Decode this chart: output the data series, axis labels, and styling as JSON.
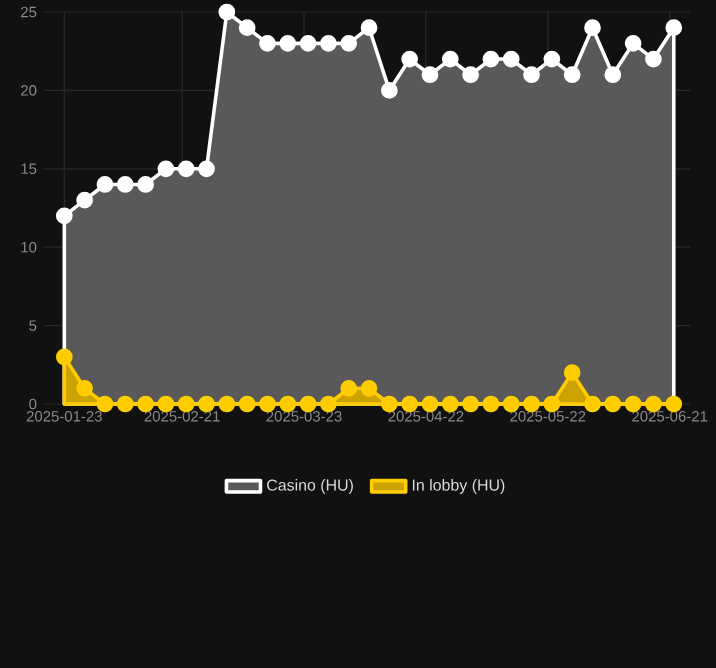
{
  "chart_data": {
    "type": "area",
    "x": [
      "2025-01-23",
      "2025-01-28",
      "2025-02-02",
      "2025-02-07",
      "2025-02-12",
      "2025-02-17",
      "2025-02-22",
      "2025-02-27",
      "2025-03-04",
      "2025-03-09",
      "2025-03-14",
      "2025-03-19",
      "2025-03-24",
      "2025-03-29",
      "2025-04-03",
      "2025-04-08",
      "2025-04-13",
      "2025-04-18",
      "2025-04-23",
      "2025-04-28",
      "2025-05-03",
      "2025-05-08",
      "2025-05-13",
      "2025-05-18",
      "2025-05-23",
      "2025-05-28",
      "2025-06-02",
      "2025-06-07",
      "2025-06-12",
      "2025-06-17",
      "2025-06-22"
    ],
    "series": [
      {
        "name": "In lobby (HU)",
        "color": "#ffcc00",
        "values": [
          3,
          1,
          0,
          0,
          0,
          0,
          0,
          0,
          0,
          0,
          0,
          0,
          0,
          0,
          1,
          1,
          0,
          0,
          0,
          0,
          0,
          0,
          0,
          0,
          0,
          2,
          0,
          0,
          0,
          0,
          0
        ]
      },
      {
        "name": "Casino (HU)",
        "color": "#ffffff",
        "values": [
          12,
          13,
          14,
          14,
          14,
          15,
          15,
          15,
          25,
          24,
          23,
          23,
          23,
          23,
          23,
          24,
          20,
          22,
          21,
          22,
          21,
          22,
          22,
          21,
          22,
          21,
          24,
          21,
          23,
          22,
          24
        ]
      }
    ],
    "xlim": [
      "2025-01-18",
      "2025-06-26"
    ],
    "xticks": [
      "2025-01-23",
      "2025-02-21",
      "2025-03-23",
      "2025-04-22",
      "2025-05-22",
      "2025-06-21"
    ],
    "ylim": [
      0,
      25
    ],
    "yticks": [
      0,
      5,
      10,
      15,
      20,
      25
    ],
    "grid": true,
    "legend": "bottom",
    "marker": "circle",
    "line_style": "solid"
  }
}
